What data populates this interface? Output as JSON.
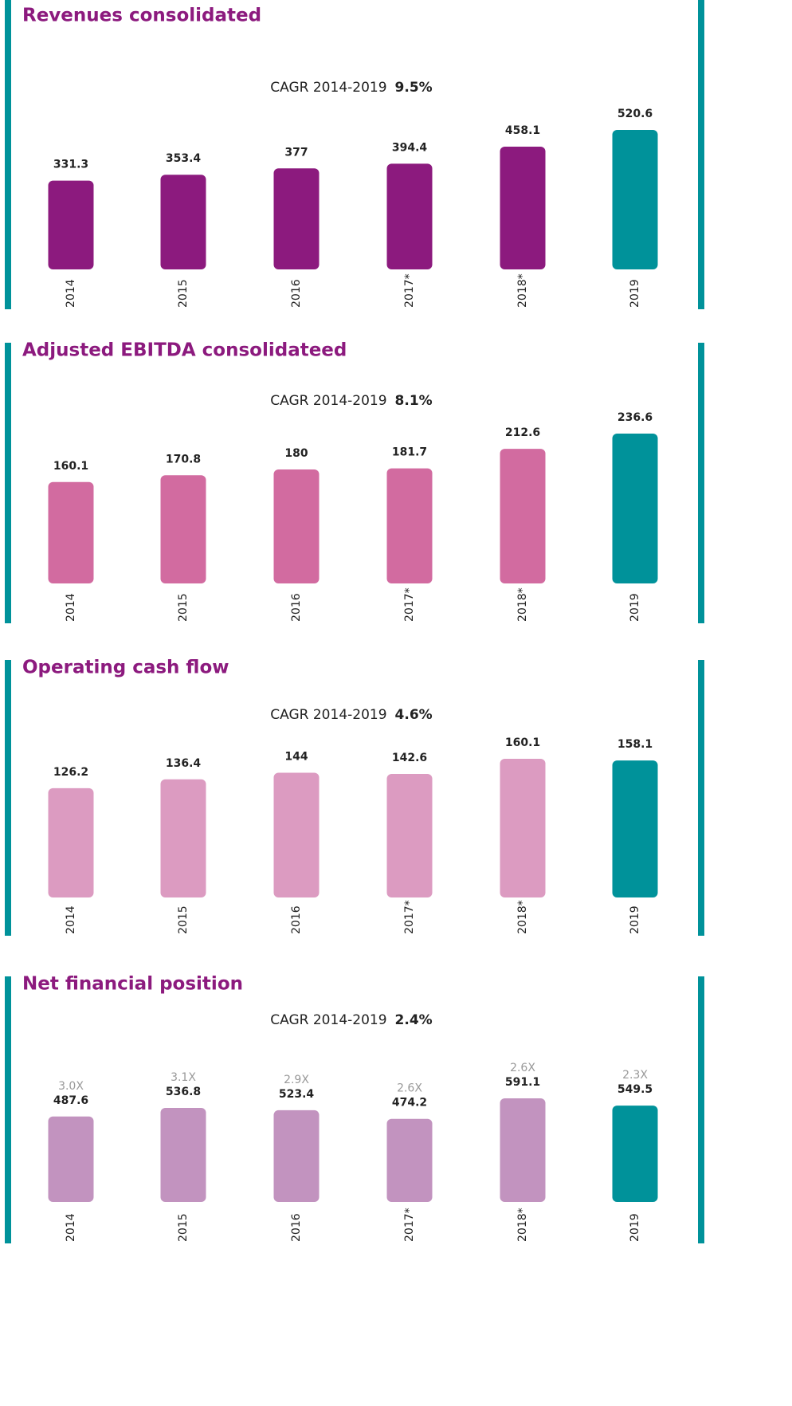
{
  "chart_data": [
    {
      "type": "bar",
      "title": "Revenues consolidated",
      "annotation": {
        "label": "CAGR 2014-2019",
        "value": "9.5%"
      },
      "categories": [
        "2014",
        "2015",
        "2016",
        "2017*",
        "2018*",
        "2019"
      ],
      "values": [
        331.3,
        353.4,
        377,
        394.4,
        458.1,
        520.6
      ],
      "colors": [
        "#8c1a7e",
        "#8c1a7e",
        "#8c1a7e",
        "#8c1a7e",
        "#8c1a7e",
        "#00929a"
      ]
    },
    {
      "type": "bar",
      "title": "Adjusted EBITDA consolidateed",
      "annotation": {
        "label": "CAGR 2014-2019",
        "value": "8.1%"
      },
      "categories": [
        "2014",
        "2015",
        "2016",
        "2017*",
        "2018*",
        "2019"
      ],
      "values": [
        160.1,
        170.8,
        180,
        181.7,
        212.6,
        236.6
      ],
      "colors": [
        "#d26ba0",
        "#d26ba0",
        "#d26ba0",
        "#d26ba0",
        "#d26ba0",
        "#00929a"
      ]
    },
    {
      "type": "bar",
      "title": "Operating cash flow",
      "annotation": {
        "label": "CAGR 2014-2019",
        "value": "4.6%"
      },
      "categories": [
        "2014",
        "2015",
        "2016",
        "2017*",
        "2018*",
        "2019"
      ],
      "values": [
        126.2,
        136.4,
        144,
        142.6,
        160.1,
        158.1
      ],
      "colors": [
        "#dc9bc1",
        "#dc9bc1",
        "#dc9bc1",
        "#dc9bc1",
        "#dc9bc1",
        "#00929a"
      ]
    },
    {
      "type": "bar",
      "title": "Net financial position",
      "annotation": {
        "label": "CAGR 2014-2019",
        "value": "2.4%"
      },
      "categories": [
        "2014",
        "2015",
        "2016",
        "2017*",
        "2018*",
        "2019"
      ],
      "values": [
        487.6,
        536.8,
        523.4,
        474.2,
        591.1,
        549.5
      ],
      "secondary_labels": [
        "3.0X",
        "3.1X",
        "2.9X",
        "2.6X",
        "2.6X",
        "2.3X"
      ],
      "colors": [
        "#c293bf",
        "#c293bf",
        "#c293bf",
        "#c293bf",
        "#c293bf",
        "#00929a"
      ]
    }
  ]
}
